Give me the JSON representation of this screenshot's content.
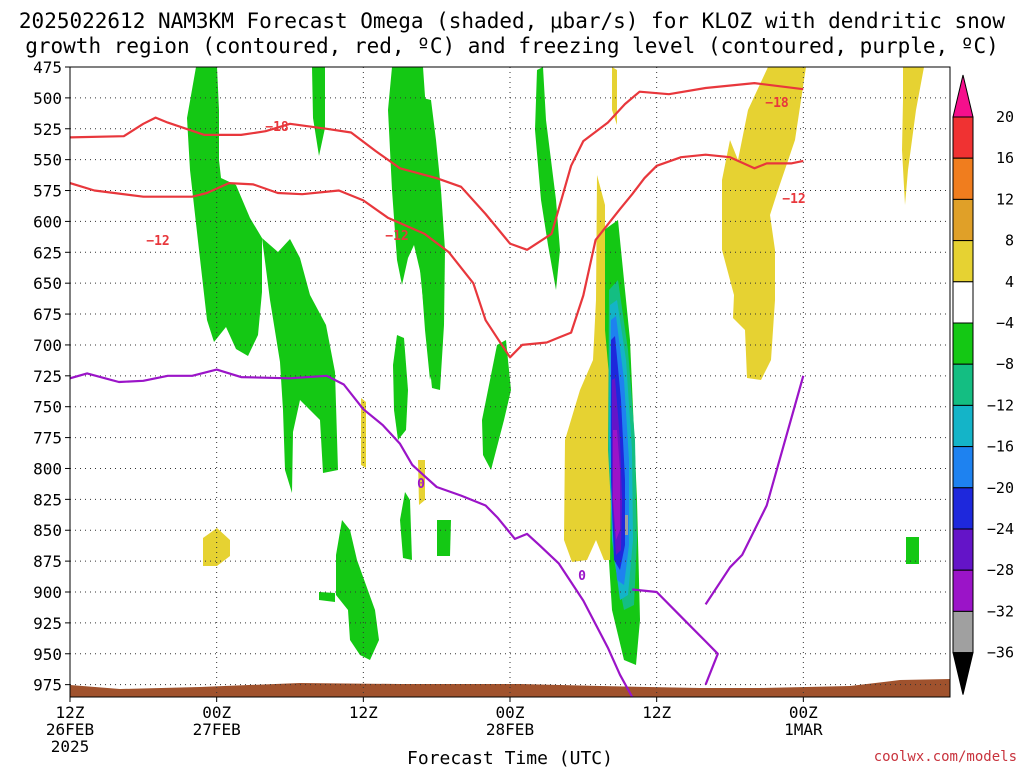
{
  "chart_data": {
    "type": "heatmap",
    "title_line1": "2025022612 NAM3KM Forecast Omega (shaded, μbar/s) for KLOZ with dendritic snow",
    "title_line2": "growth region (contoured, red, ºC) and freezing level (contoured, purple, ºC)",
    "xlabel": "Forecast Time (UTC)",
    "credit": "coolwx.com/models",
    "grid": true,
    "y_axis": {
      "unit": "hPa",
      "ticks": [
        475,
        500,
        525,
        550,
        575,
        600,
        625,
        650,
        675,
        700,
        725,
        750,
        775,
        800,
        825,
        850,
        875,
        900,
        925,
        950,
        975
      ]
    },
    "x_axis": {
      "range_hours": [
        0,
        36
      ],
      "ticks": [
        {
          "hour": 0,
          "lines": [
            "12Z",
            "26FEB",
            "2025"
          ]
        },
        {
          "hour": 6,
          "lines": [
            "00Z",
            "27FEB"
          ]
        },
        {
          "hour": 12,
          "lines": [
            "12Z"
          ]
        },
        {
          "hour": 18,
          "lines": [
            "00Z",
            "28FEB"
          ]
        },
        {
          "hour": 24,
          "lines": [
            "12Z"
          ]
        },
        {
          "hour": 30,
          "lines": [
            "00Z",
            "1MAR"
          ]
        }
      ]
    },
    "colorbar": {
      "labels": [
        "20",
        "16",
        "12",
        "8",
        "4",
        "−4",
        "−8",
        "−12",
        "−16",
        "−20",
        "−24",
        "−28",
        "−32",
        "−36"
      ],
      "colors": [
        "#f50f8c",
        "#f03232",
        "#f07d1e",
        "#e0a028",
        "#e6d232",
        "#ffffff",
        "#14c814",
        "#14be82",
        "#14b4c8",
        "#1e82f0",
        "#1e28dc",
        "#6414c8",
        "#9b14c8",
        "#a0a0a0"
      ]
    },
    "contours": {
      "red_label_values": [
        "−18",
        "−12",
        "−18",
        "−12",
        "−12"
      ],
      "purple_label_values": [
        "0",
        "0"
      ],
      "red_m18": [
        [
          0,
          532
        ],
        [
          2.2,
          531
        ],
        [
          3,
          521
        ],
        [
          3.5,
          516
        ],
        [
          4,
          520
        ],
        [
          5.5,
          530
        ],
        [
          7,
          530
        ],
        [
          8,
          527
        ],
        [
          9,
          521
        ],
        [
          10.5,
          525
        ],
        [
          11.5,
          528
        ],
        [
          12.5,
          543
        ],
        [
          13.5,
          557
        ],
        [
          15,
          565
        ],
        [
          16,
          572
        ],
        [
          17,
          594
        ],
        [
          18,
          618
        ],
        [
          18.7,
          623
        ],
        [
          19.7,
          610
        ],
        [
          20.5,
          555
        ],
        [
          21,
          535
        ],
        [
          22,
          520
        ],
        [
          22.7,
          505
        ],
        [
          23.3,
          495
        ],
        [
          24.5,
          497
        ],
        [
          26,
          492
        ],
        [
          28,
          488
        ],
        [
          30,
          493
        ]
      ],
      "red_m12": [
        [
          0,
          569
        ],
        [
          1,
          575
        ],
        [
          3,
          580
        ],
        [
          5,
          580
        ],
        [
          5.6,
          577
        ],
        [
          6.5,
          569
        ],
        [
          7.5,
          570
        ],
        [
          8.5,
          577
        ],
        [
          9.5,
          578
        ],
        [
          11,
          575
        ],
        [
          12,
          583
        ],
        [
          13,
          597
        ],
        [
          14.5,
          610
        ],
        [
          15.5,
          625
        ],
        [
          16.5,
          650
        ],
        [
          17,
          680
        ],
        [
          17.5,
          695
        ],
        [
          18,
          710
        ],
        [
          18.5,
          700
        ],
        [
          19.5,
          698
        ],
        [
          20,
          694
        ],
        [
          20.5,
          690
        ],
        [
          21,
          660
        ],
        [
          21.5,
          615
        ],
        [
          22.5,
          590
        ],
        [
          23,
          578
        ],
        [
          23.5,
          565
        ],
        [
          24,
          555
        ],
        [
          25,
          548
        ],
        [
          26,
          546
        ],
        [
          27,
          548
        ],
        [
          28,
          557
        ],
        [
          28.5,
          553
        ],
        [
          29.5,
          553
        ],
        [
          30,
          551
        ]
      ],
      "purple_0": [
        [
          0,
          727
        ],
        [
          0.7,
          723
        ],
        [
          2,
          730
        ],
        [
          3,
          729
        ],
        [
          4,
          725
        ],
        [
          5,
          725
        ],
        [
          6,
          720
        ],
        [
          7,
          726
        ],
        [
          9,
          727
        ],
        [
          10.5,
          725
        ],
        [
          11.2,
          732
        ],
        [
          12,
          752
        ],
        [
          12.8,
          765
        ],
        [
          13.5,
          780
        ],
        [
          14,
          797
        ],
        [
          14.5,
          806
        ],
        [
          15,
          815
        ],
        [
          16,
          822
        ],
        [
          17,
          830
        ],
        [
          17.5,
          840
        ],
        [
          18.2,
          857
        ],
        [
          18.7,
          853
        ],
        [
          19.2,
          862
        ],
        [
          20,
          877
        ],
        [
          21,
          907
        ],
        [
          22,
          945
        ],
        [
          22.5,
          967
        ],
        [
          23,
          985
        ]
      ],
      "purple_0_right": [
        [
          23,
          898
        ],
        [
          24,
          900
        ],
        [
          25,
          920
        ],
        [
          26,
          940
        ],
        [
          26.5,
          950
        ],
        [
          26,
          975
        ]
      ],
      "purple_0_right_upper": [
        [
          26,
          910
        ],
        [
          27,
          880
        ],
        [
          27.5,
          870
        ],
        [
          28.5,
          830
        ],
        [
          29.5,
          760
        ],
        [
          30,
          725
        ]
      ]
    },
    "omega_regions": {
      "green_lt_m4": "-8 to -4",
      "yellow_gt_4": "4 to 8",
      "core_min": "< -32"
    }
  }
}
